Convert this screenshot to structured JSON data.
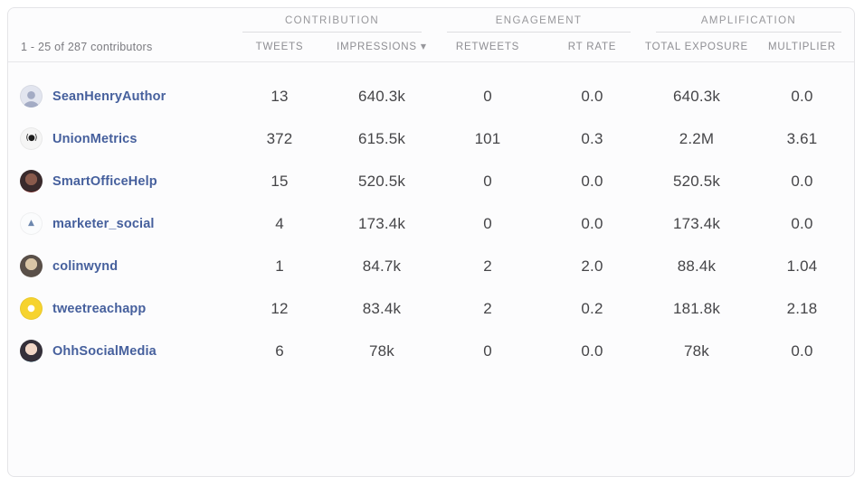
{
  "pagination": {
    "label": "1 - 25 of 287 contributors"
  },
  "column_groups": [
    {
      "label": "CONTRIBUTION"
    },
    {
      "label": "ENGAGEMENT"
    },
    {
      "label": "AMPLIFICATION"
    }
  ],
  "columns": [
    {
      "key": "tweets",
      "label": "TWEETS",
      "sorted": false
    },
    {
      "key": "impressions",
      "label": "IMPRESSIONS",
      "sorted": true,
      "sort_direction": "desc"
    },
    {
      "key": "retweets",
      "label": "RETWEETS",
      "sorted": false
    },
    {
      "key": "rt_rate",
      "label": "RT RATE",
      "sorted": false
    },
    {
      "key": "total_exposure",
      "label": "TOTAL EXPOSURE",
      "sorted": false
    },
    {
      "key": "multiplier",
      "label": "MULTIPLIER",
      "sorted": false
    }
  ],
  "icons": {
    "sort_desc": "▼"
  },
  "colors": {
    "username_link": "#46609d",
    "header_text": "#8e8e93",
    "number_text": "#454548",
    "card_border": "#e4e4e7",
    "card_background": "#fcfcfd"
  },
  "rows": [
    {
      "username": "SeanHenryAuthor",
      "tweets": "13",
      "impressions": "640.3k",
      "retweets": "0",
      "rt_rate": "0.0",
      "total_exposure": "640.3k",
      "multiplier": "0.0",
      "avatar": {
        "name": "default-person-avatar",
        "style": "person",
        "bg": "#e2e5ef",
        "fg": "#a3abc4"
      }
    },
    {
      "username": "UnionMetrics",
      "tweets": "372",
      "impressions": "615.5k",
      "retweets": "101",
      "rt_rate": "0.3",
      "total_exposure": "2.2M",
      "multiplier": "3.61",
      "avatar": {
        "name": "unionmetrics-logo-avatar",
        "style": "glyph",
        "bg": "#f5f5f5",
        "fg": "#1c1c1c",
        "glyph": "(●)",
        "size": 9,
        "spacing": "-1px"
      }
    },
    {
      "username": "SmartOfficeHelp",
      "tweets": "15",
      "impressions": "520.5k",
      "retweets": "0",
      "rt_rate": "0.0",
      "total_exposure": "520.5k",
      "multiplier": "0.0",
      "avatar": {
        "name": "profile-photo-avatar",
        "style": "photo",
        "colors": [
          "#8a5a4c",
          "#3a2a2c",
          "#a3332e"
        ]
      }
    },
    {
      "username": "marketer_social",
      "tweets": "4",
      "impressions": "173.4k",
      "retweets": "0",
      "rt_rate": "0.0",
      "total_exposure": "173.4k",
      "multiplier": "0.0",
      "avatar": {
        "name": "marketer-social-logo-avatar",
        "style": "glyph",
        "bg": "#fbfcfd",
        "fg": "#6d87ae",
        "glyph": "▲",
        "size": 9,
        "spacing": "0"
      }
    },
    {
      "username": "colinwynd",
      "tweets": "1",
      "impressions": "84.7k",
      "retweets": "2",
      "rt_rate": "2.0",
      "total_exposure": "88.4k",
      "multiplier": "1.04",
      "avatar": {
        "name": "profile-photo-avatar",
        "style": "photo",
        "colors": [
          "#d9c5a6",
          "#5a5049",
          "#8d8578"
        ]
      }
    },
    {
      "username": "tweetreachapp",
      "tweets": "12",
      "impressions": "83.4k",
      "retweets": "2",
      "rt_rate": "0.2",
      "total_exposure": "181.8k",
      "multiplier": "2.18",
      "avatar": {
        "name": "tweetreach-logo-avatar",
        "style": "glyph",
        "bg": "#f6d32e",
        "fg": "#ffffff",
        "glyph": "●",
        "size": 10,
        "spacing": "0"
      }
    },
    {
      "username": "OhhSocialMedia",
      "tweets": "6",
      "impressions": "78k",
      "retweets": "0",
      "rt_rate": "0.0",
      "total_exposure": "78k",
      "multiplier": "0.0",
      "avatar": {
        "name": "profile-photo-avatar",
        "style": "photo",
        "colors": [
          "#f1d6c6",
          "#35303a",
          "#bfe3ef"
        ]
      }
    }
  ]
}
